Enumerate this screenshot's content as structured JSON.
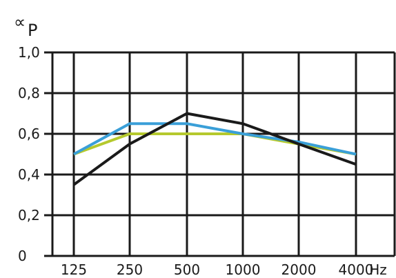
{
  "chart_data": {
    "type": "line",
    "title": "",
    "xlabel": "Hz",
    "ylabel_symbol": "∝",
    "ylabel_subscript": "P",
    "categories": [
      "125",
      "250",
      "500",
      "1000",
      "2000",
      "4000"
    ],
    "y_tick_labels": [
      "0",
      "0,2",
      "0,4",
      "0,6",
      "0,8",
      "1,0"
    ],
    "y_ticks": [
      0,
      0.2,
      0.4,
      0.6,
      0.8,
      1.0
    ],
    "ylim": [
      0,
      1.0
    ],
    "grid": true,
    "series": [
      {
        "color": "#b5c92d",
        "values": [
          0.5,
          0.6,
          0.6,
          0.6,
          0.55,
          0.5
        ]
      },
      {
        "color": "#3a9fd8",
        "values": [
          0.5,
          0.65,
          0.65,
          0.6,
          0.56,
          0.5
        ]
      },
      {
        "color": "#1a1a1a",
        "values": [
          0.35,
          0.55,
          0.7,
          0.65,
          0.55,
          0.45
        ]
      }
    ]
  }
}
